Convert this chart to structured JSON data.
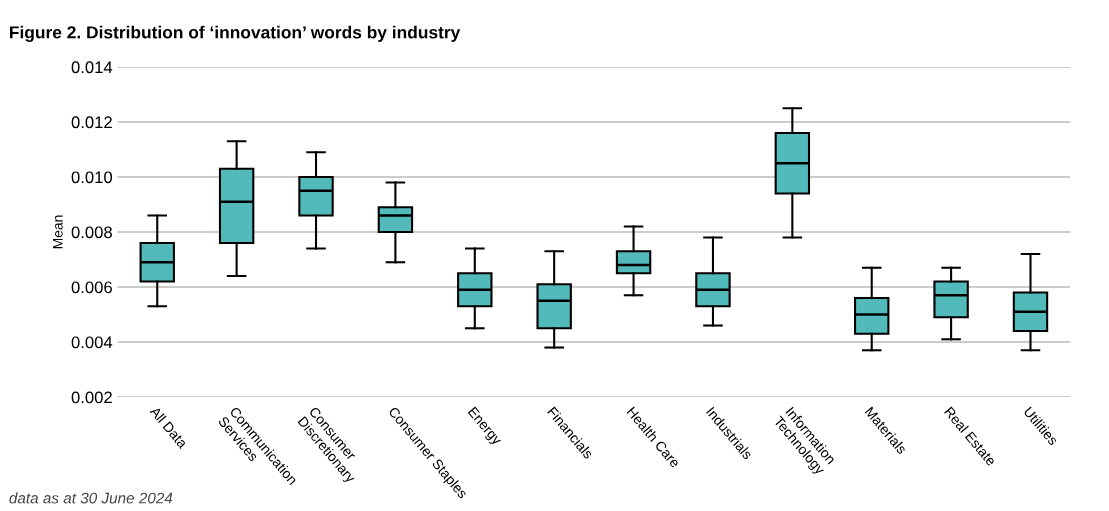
{
  "chart_data": {
    "type": "box",
    "title": "Figure 2. Distribution of ‘innovation’ words by industry",
    "ylabel": "Mean",
    "categories": [
      "All Data",
      "Communication Services",
      "Consumer Discretionary",
      "Consumer Staples",
      "Energy",
      "Financials",
      "Health Care",
      "Industrials",
      "Information Technology",
      "Materials",
      "Real Estate",
      "Utilities"
    ],
    "boxes": [
      {
        "low": 0.0053,
        "q1": 0.0062,
        "median": 0.0069,
        "q3": 0.0076,
        "high": 0.0086
      },
      {
        "low": 0.0064,
        "q1": 0.0076,
        "median": 0.0091,
        "q3": 0.0103,
        "high": 0.0113
      },
      {
        "low": 0.0074,
        "q1": 0.0086,
        "median": 0.0095,
        "q3": 0.01,
        "high": 0.0109
      },
      {
        "low": 0.0069,
        "q1": 0.008,
        "median": 0.0086,
        "q3": 0.0089,
        "high": 0.0098
      },
      {
        "low": 0.0045,
        "q1": 0.0053,
        "median": 0.0059,
        "q3": 0.0065,
        "high": 0.0074
      },
      {
        "low": 0.0038,
        "q1": 0.0045,
        "median": 0.0055,
        "q3": 0.0061,
        "high": 0.0073
      },
      {
        "low": 0.0057,
        "q1": 0.0065,
        "median": 0.0068,
        "q3": 0.0073,
        "high": 0.0082
      },
      {
        "low": 0.0046,
        "q1": 0.0053,
        "median": 0.0059,
        "q3": 0.0065,
        "high": 0.0078
      },
      {
        "low": 0.0078,
        "q1": 0.0094,
        "median": 0.0105,
        "q3": 0.0116,
        "high": 0.0125
      },
      {
        "low": 0.0037,
        "q1": 0.0043,
        "median": 0.005,
        "q3": 0.0056,
        "high": 0.0067
      },
      {
        "low": 0.0041,
        "q1": 0.0049,
        "median": 0.0057,
        "q3": 0.0062,
        "high": 0.0067
      },
      {
        "low": 0.0037,
        "q1": 0.0044,
        "median": 0.0051,
        "q3": 0.0058,
        "high": 0.0072
      }
    ],
    "color": "#52baba",
    "ylim": [
      0.002,
      0.014
    ],
    "yticks": [
      {
        "value": 0.002,
        "label": "0.002"
      },
      {
        "value": 0.004,
        "label": "0.004"
      },
      {
        "value": 0.006,
        "label": "0.006"
      },
      {
        "value": 0.008,
        "label": "0.008"
      },
      {
        "value": 0.01,
        "label": "0.010"
      },
      {
        "value": 0.012,
        "label": "0.012"
      },
      {
        "value": 0.014,
        "label": "0.014"
      }
    ],
    "grid": "y",
    "annotations": [
      "data as at 30 June 2024"
    ]
  }
}
